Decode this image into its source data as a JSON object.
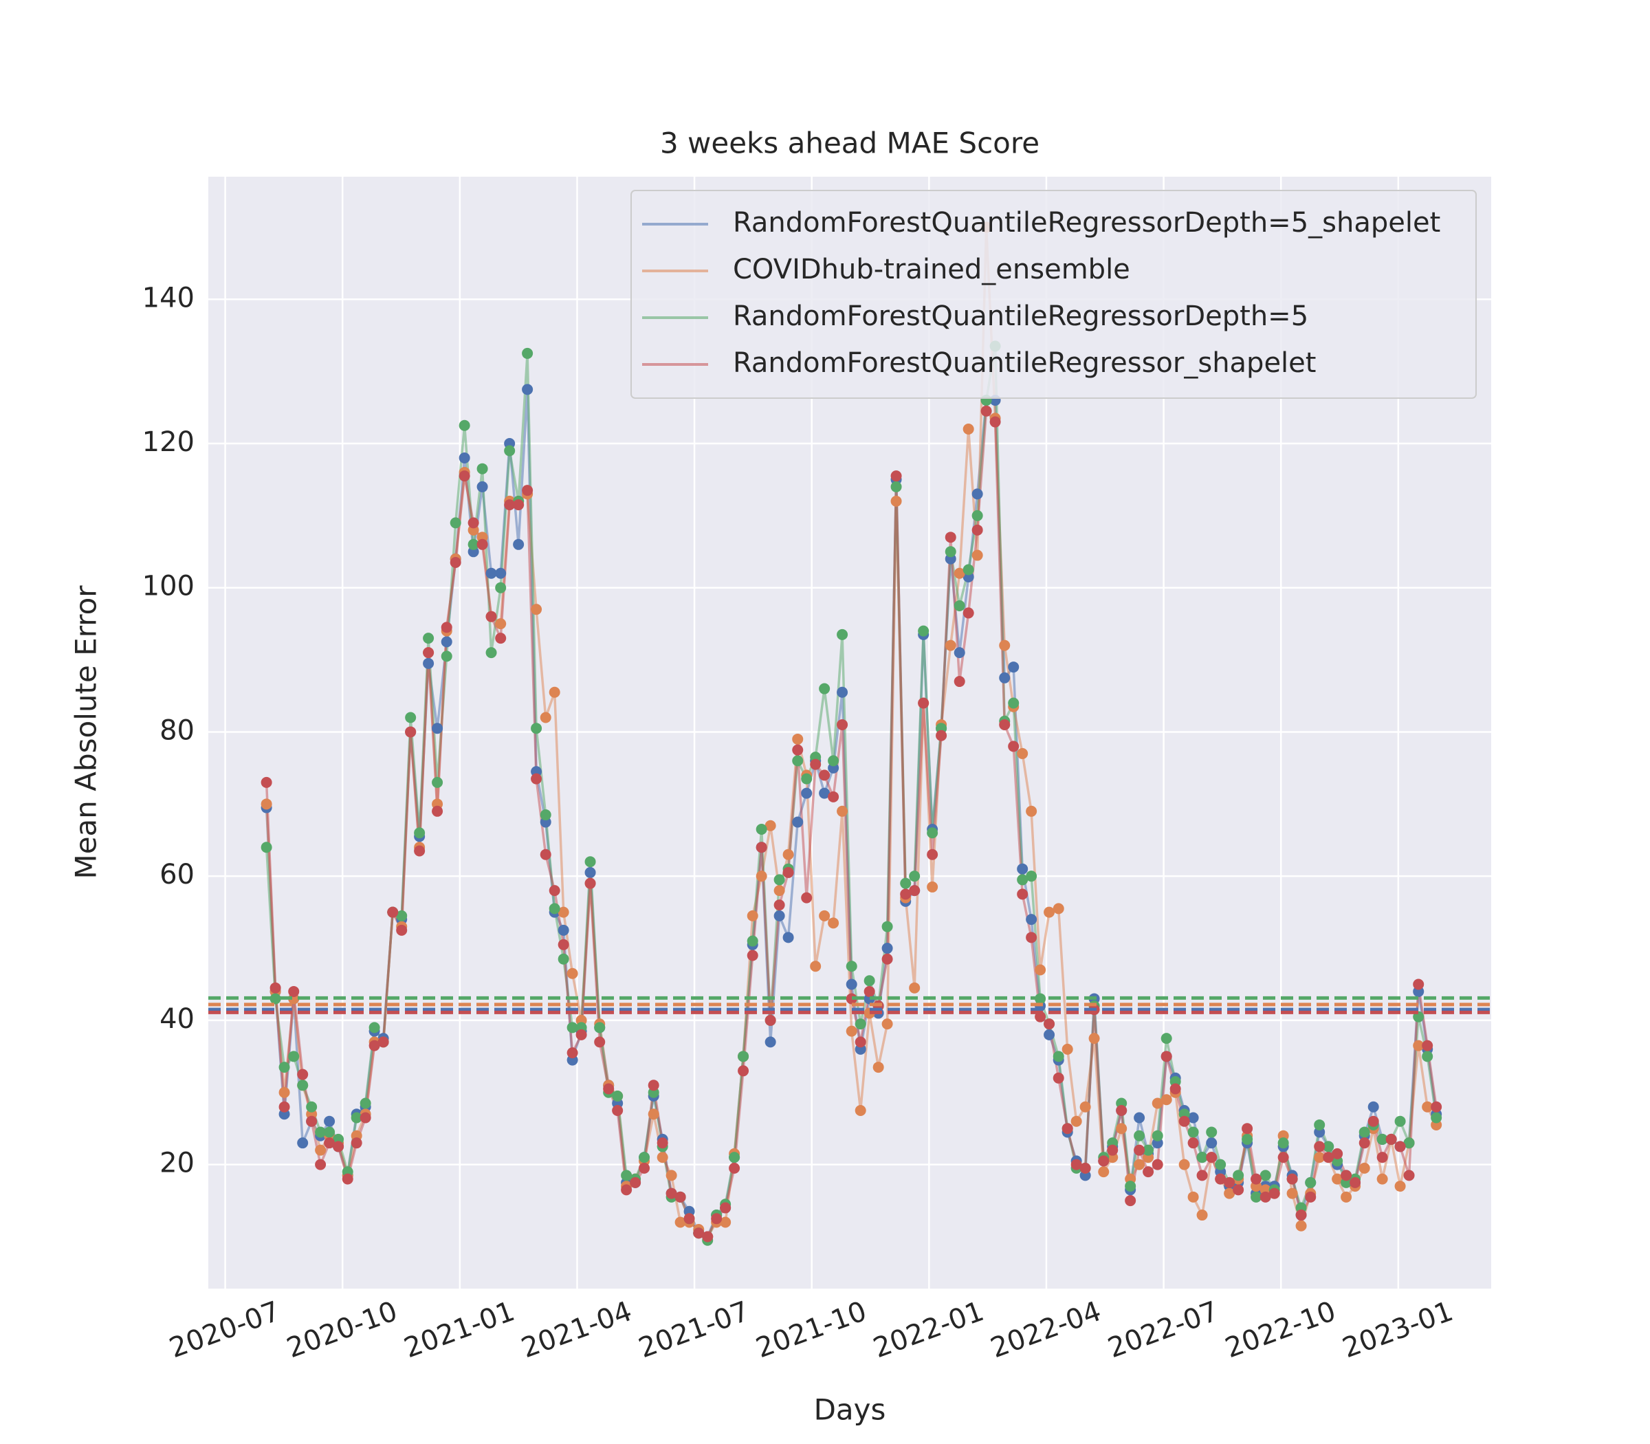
{
  "chart_data": {
    "type": "line",
    "title": "3 weeks ahead MAE Score",
    "x_label": "Days",
    "y_label": "Mean Absolute Error",
    "legend": "upper right",
    "grid": true,
    "xlim": [
      2020.464,
      2023.198
    ],
    "ylim": [
      2.8,
      157
    ],
    "xticks": [
      {
        "value": 2020.5,
        "label": "2020-07"
      },
      {
        "value": 2020.75,
        "label": "2020-10"
      },
      {
        "value": 2021.0,
        "label": "2021-01"
      },
      {
        "value": 2021.25,
        "label": "2021-04"
      },
      {
        "value": 2021.5,
        "label": "2021-07"
      },
      {
        "value": 2021.75,
        "label": "2021-10"
      },
      {
        "value": 2022.0,
        "label": "2022-01"
      },
      {
        "value": 2022.25,
        "label": "2022-04"
      },
      {
        "value": 2022.5,
        "label": "2022-07"
      },
      {
        "value": 2022.75,
        "label": "2022-10"
      },
      {
        "value": 2023.0,
        "label": "2023-01"
      }
    ],
    "yticks": [
      20,
      40,
      60,
      80,
      100,
      120,
      140
    ],
    "x": [
      2020.588,
      2020.607,
      2020.626,
      2020.646,
      2020.665,
      2020.684,
      2020.703,
      2020.722,
      2020.741,
      2020.761,
      2020.78,
      2020.799,
      2020.818,
      2020.837,
      2020.857,
      2020.876,
      2020.895,
      2020.914,
      2020.933,
      2020.952,
      2020.972,
      2020.991,
      2021.01,
      2021.029,
      2021.048,
      2021.067,
      2021.087,
      2021.106,
      2021.125,
      2021.144,
      2021.163,
      2021.183,
      2021.202,
      2021.221,
      2021.24,
      2021.259,
      2021.278,
      2021.298,
      2021.317,
      2021.336,
      2021.355,
      2021.374,
      2021.393,
      2021.413,
      2021.432,
      2021.451,
      2021.47,
      2021.489,
      2021.509,
      2021.528,
      2021.547,
      2021.566,
      2021.585,
      2021.604,
      2021.624,
      2021.643,
      2021.662,
      2021.681,
      2021.7,
      2021.72,
      2021.739,
      2021.758,
      2021.777,
      2021.796,
      2021.815,
      2021.835,
      2021.854,
      2021.873,
      2021.892,
      2021.911,
      2021.93,
      2021.95,
      2021.969,
      2021.988,
      2022.007,
      2022.026,
      2022.046,
      2022.065,
      2022.084,
      2022.103,
      2022.122,
      2022.141,
      2022.161,
      2022.18,
      2022.199,
      2022.218,
      2022.237,
      2022.256,
      2022.276,
      2022.295,
      2022.314,
      2022.333,
      2022.352,
      2022.372,
      2022.391,
      2022.41,
      2022.429,
      2022.448,
      2022.467,
      2022.487,
      2022.506,
      2022.525,
      2022.544,
      2022.563,
      2022.582,
      2022.602,
      2022.621,
      2022.64,
      2022.659,
      2022.678,
      2022.697,
      2022.717,
      2022.736,
      2022.755,
      2022.774,
      2022.793,
      2022.813,
      2022.832,
      2022.851,
      2022.87,
      2022.889,
      2022.908,
      2022.928,
      2022.947,
      2022.966,
      2022.985,
      2023.004,
      2023.023,
      2023.043,
      2023.062,
      2023.081
    ],
    "series": [
      {
        "name": "RandomForestQuantileRegressorDepth=5_shapelet",
        "color": "#4c72b0",
        "mean": 41.5,
        "values": [
          69.5,
          44,
          27,
          43,
          23,
          26,
          24,
          26,
          22.5,
          18.5,
          27,
          28,
          38.5,
          37.5,
          55,
          54,
          80,
          65.5,
          89.5,
          80.5,
          92.5,
          104,
          118,
          105,
          114,
          102,
          102,
          120,
          106,
          127.5,
          74.5,
          67.5,
          55,
          52.5,
          34.5,
          38.5,
          60.5,
          39,
          31,
          28.5,
          17.5,
          17.5,
          21,
          29.5,
          23.5,
          16,
          15.5,
          13.5,
          10.5,
          10,
          13,
          14,
          21,
          35,
          50.5,
          64,
          37,
          54.5,
          51.5,
          67.5,
          71.5,
          76,
          71.5,
          75,
          85.5,
          45,
          36,
          43,
          41,
          50,
          115,
          56.5,
          58,
          93.5,
          66.5,
          80.5,
          104,
          91,
          101.5,
          113,
          126,
          126,
          87.5,
          89,
          61,
          54,
          42,
          38,
          34.5,
          24.5,
          20.5,
          18.5,
          43,
          20.5,
          22.5,
          27.5,
          16.5,
          26.5,
          21.5,
          23,
          35,
          32,
          27.5,
          26.5,
          21,
          23,
          19,
          17,
          17.5,
          23,
          16,
          17,
          17,
          22.5,
          18.5,
          13,
          17.5,
          24.5,
          22.5,
          20,
          18.5,
          17.5,
          24,
          28,
          23.5,
          23.5,
          22.5,
          23,
          44,
          36,
          27
        ]
      },
      {
        "name": "COVIDhub-trained_ensemble",
        "color": "#dd8452",
        "mean": 42.2,
        "values": [
          70,
          44,
          30,
          43,
          31,
          27,
          22,
          24,
          23,
          18.5,
          24,
          27,
          37,
          37,
          55,
          53,
          80,
          64,
          91,
          70,
          94,
          104,
          116,
          108,
          107,
          96,
          95,
          112,
          112,
          113,
          97,
          82,
          85.5,
          55,
          46.5,
          40,
          59,
          39.5,
          31,
          29.5,
          17,
          18,
          20.5,
          27,
          21,
          18.5,
          12,
          12,
          11,
          10,
          12,
          12,
          21.5,
          35,
          54.5,
          60,
          67,
          58,
          63,
          79,
          74,
          47.5,
          54.5,
          53.5,
          69,
          38.5,
          27.5,
          41,
          33.5,
          39.5,
          112,
          57,
          44.5,
          84,
          58.5,
          81,
          92,
          102,
          122,
          104.5,
          150,
          123.5,
          92,
          83.5,
          77,
          69,
          47,
          55,
          55.5,
          36,
          26,
          28,
          37.5,
          19,
          21,
          25,
          18,
          20,
          21,
          28.5,
          29,
          30,
          20,
          15.5,
          13,
          21,
          18,
          16,
          18,
          24,
          17,
          16.5,
          16,
          24,
          16,
          11.5,
          16,
          21,
          21,
          18,
          15.5,
          17,
          19.5,
          25,
          18,
          23.5,
          17,
          23,
          36.5,
          28,
          25.5
        ]
      },
      {
        "name": "RandomForestQuantileRegressorDepth=5",
        "color": "#55a868",
        "mean": 43.1,
        "values": [
          64,
          43,
          33.5,
          35,
          31,
          28,
          24.5,
          24.5,
          23.5,
          19,
          26.5,
          28.5,
          39,
          37,
          55,
          54.5,
          82,
          66,
          93,
          73,
          90.5,
          109,
          122.5,
          106,
          116.5,
          91,
          100,
          119,
          112,
          132.5,
          80.5,
          68.5,
          55.5,
          48.5,
          39,
          39,
          62,
          39,
          30,
          29.5,
          18.5,
          18,
          21,
          30,
          22.5,
          15.5,
          15.5,
          12.5,
          10.5,
          9.5,
          13,
          14.5,
          21,
          35,
          51,
          66.5,
          40,
          59.5,
          61,
          76,
          73.5,
          76.5,
          86,
          76,
          93.5,
          47.5,
          39.5,
          45.5,
          42,
          53,
          114,
          59,
          60,
          94,
          66,
          80.5,
          105,
          97.5,
          102.5,
          110,
          126,
          133.5,
          81.5,
          84,
          59.5,
          60,
          43,
          39.5,
          35,
          25,
          19.5,
          19.5,
          42,
          21,
          23,
          28.5,
          17,
          24,
          22,
          24,
          37.5,
          31.5,
          27,
          24.5,
          21,
          24.5,
          20,
          17.5,
          18.5,
          23.5,
          15.5,
          18.5,
          16.5,
          23,
          18,
          14,
          17.5,
          25.5,
          22.5,
          20.5,
          17.5,
          18,
          24.5,
          25.5,
          23.5,
          23.5,
          26,
          23,
          40.5,
          35,
          26.5
        ]
      },
      {
        "name": "RandomForestQuantileRegressor_shapelet",
        "color": "#c44e52",
        "mean": 41.1,
        "values": [
          73,
          44.5,
          28,
          44,
          32.5,
          26,
          20,
          23,
          22.5,
          18,
          23,
          26.5,
          36.5,
          37,
          55,
          52.5,
          80,
          63.5,
          91,
          69,
          94.5,
          103.5,
          115.5,
          109,
          106,
          96,
          93,
          111.5,
          111.5,
          113.5,
          73.5,
          63,
          58,
          50.5,
          35.5,
          38,
          59,
          37,
          30.5,
          27.5,
          16.5,
          17.5,
          19.5,
          31,
          23,
          16,
          15.5,
          12.5,
          10.5,
          10,
          12.5,
          14,
          19.5,
          33,
          49,
          64,
          40,
          56,
          60.5,
          77.5,
          57,
          75.5,
          74,
          71,
          81,
          43,
          37,
          44,
          42,
          48.5,
          115.5,
          57.5,
          58,
          84,
          63,
          79.5,
          107,
          87,
          96.5,
          108,
          124.5,
          123,
          81,
          78,
          57.5,
          51.5,
          40.5,
          39.5,
          32,
          25,
          20,
          19.5,
          41.5,
          20.5,
          22,
          27.5,
          15,
          22,
          19,
          20,
          35,
          30.5,
          26,
          23,
          18.5,
          21,
          18,
          17.5,
          16.5,
          25,
          18,
          15.5,
          16,
          21,
          18,
          13,
          15.5,
          22.5,
          21,
          21.5,
          18.5,
          17.5,
          23,
          26,
          21,
          23.5,
          22.5,
          18.5,
          45,
          36.5,
          28
        ]
      }
    ]
  }
}
